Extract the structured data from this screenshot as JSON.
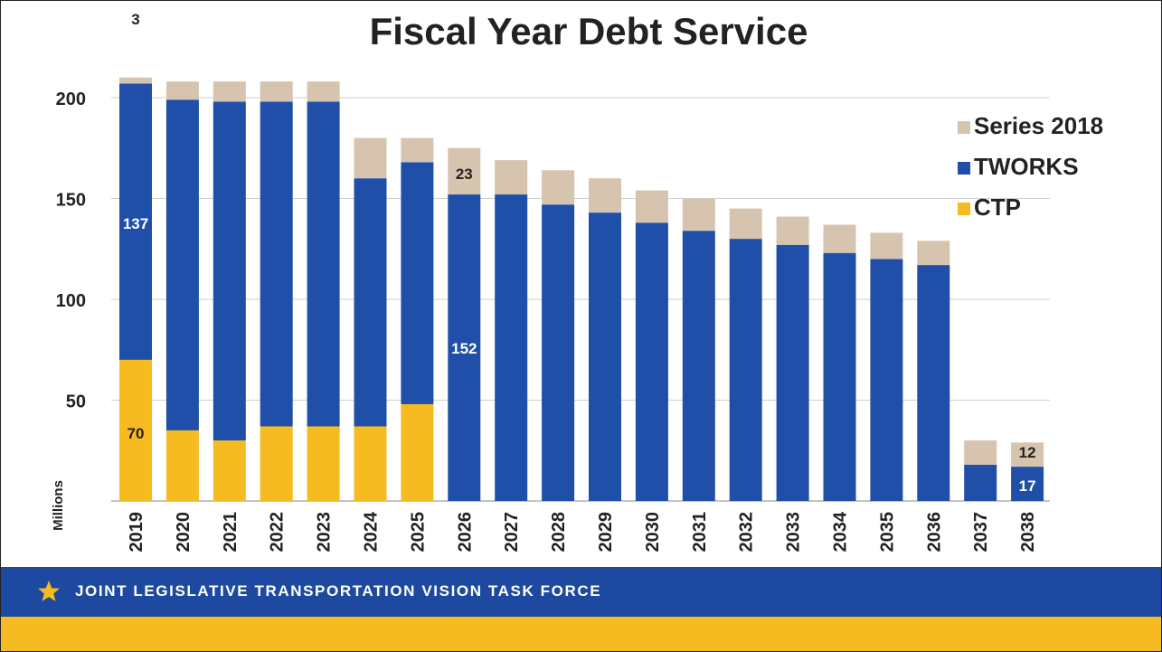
{
  "chart_data": {
    "type": "bar",
    "stacked": true,
    "title": "Fiscal Year Debt Service",
    "ylabel": "Millions",
    "ylim": [
      0,
      210
    ],
    "yticks": [
      50,
      100,
      150,
      200
    ],
    "grid": true,
    "legend_position": "right",
    "categories": [
      "2019",
      "2020",
      "2021",
      "2022",
      "2023",
      "2024",
      "2025",
      "2026",
      "2027",
      "2028",
      "2029",
      "2030",
      "2031",
      "2032",
      "2033",
      "2034",
      "2035",
      "2036",
      "2037",
      "2038"
    ],
    "series": [
      {
        "name": "CTP",
        "color": "#f7bb22",
        "values": [
          70,
          35,
          30,
          37,
          37,
          37,
          48,
          0,
          0,
          0,
          0,
          0,
          0,
          0,
          0,
          0,
          0,
          0,
          0,
          0
        ]
      },
      {
        "name": "TWORKS",
        "color": "#1f4fa8",
        "values": [
          137,
          164,
          168,
          161,
          161,
          123,
          120,
          152,
          152,
          147,
          143,
          138,
          134,
          130,
          127,
          123,
          120,
          117,
          18,
          17
        ]
      },
      {
        "name": "Series 2018",
        "color": "#d6c4ae",
        "values": [
          3,
          9,
          10,
          10,
          10,
          20,
          12,
          23,
          17,
          17,
          17,
          16,
          16,
          15,
          14,
          14,
          13,
          12,
          12,
          12
        ]
      }
    ],
    "data_labels": [
      {
        "category": "2019",
        "series": "Series 2018",
        "text": "3"
      },
      {
        "category": "2019",
        "series": "TWORKS",
        "text": "137"
      },
      {
        "category": "2019",
        "series": "CTP",
        "text": "70"
      },
      {
        "category": "2026",
        "series": "Series 2018",
        "text": "23"
      },
      {
        "category": "2026",
        "series": "TWORKS",
        "text": "152"
      },
      {
        "category": "2038",
        "series": "Series 2018",
        "text": "12"
      },
      {
        "category": "2038",
        "series": "TWORKS",
        "text": "17"
      }
    ]
  },
  "footer": {
    "text": "JOINT LEGISLATIVE TRANSPORTATION VISION TASK FORCE",
    "icon": "star-icon",
    "band_color": "#1d4aa0",
    "stripe_color": "#f7bb22"
  }
}
